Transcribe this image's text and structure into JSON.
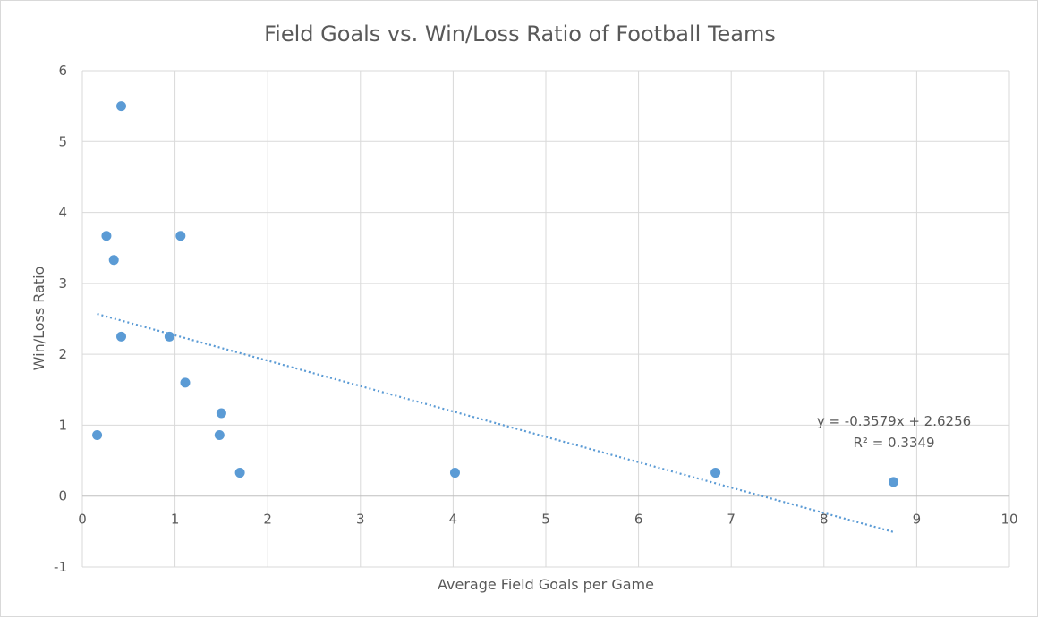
{
  "chart_data": {
    "type": "scatter",
    "title": "Field Goals vs. Win/Loss Ratio of Football Teams",
    "xlabel": "Average Field Goals per Game",
    "ylabel": "Win/Loss Ratio",
    "xlim": [
      0,
      10
    ],
    "ylim": [
      -1,
      6
    ],
    "xticks": [
      "0",
      "1",
      "2",
      "3",
      "4",
      "5",
      "6",
      "7",
      "8",
      "9",
      "10"
    ],
    "yticks": [
      "-1",
      "0",
      "1",
      "2",
      "3",
      "4",
      "5",
      "6"
    ],
    "grid": true,
    "series": [
      {
        "color": "#5b9bd5",
        "points": [
          {
            "x": 0.42,
            "y": 5.5
          },
          {
            "x": 0.26,
            "y": 3.67
          },
          {
            "x": 1.06,
            "y": 3.67
          },
          {
            "x": 0.34,
            "y": 3.33
          },
          {
            "x": 0.42,
            "y": 2.25
          },
          {
            "x": 0.94,
            "y": 2.25
          },
          {
            "x": 1.11,
            "y": 1.6
          },
          {
            "x": 1.5,
            "y": 1.17
          },
          {
            "x": 0.16,
            "y": 0.86
          },
          {
            "x": 1.48,
            "y": 0.86
          },
          {
            "x": 1.7,
            "y": 0.33
          },
          {
            "x": 4.02,
            "y": 0.33
          },
          {
            "x": 6.83,
            "y": 0.33
          },
          {
            "x": 8.75,
            "y": 0.2
          }
        ]
      }
    ],
    "trendline": {
      "type": "linear",
      "slope": -0.3579,
      "intercept": 2.6256,
      "x_range": [
        0.16,
        8.75
      ],
      "color": "#5b9bd5",
      "style": "dotted",
      "equation_label": "y = -0.3579x + 2.6256",
      "r2_label": "R² = 0.3349"
    }
  }
}
